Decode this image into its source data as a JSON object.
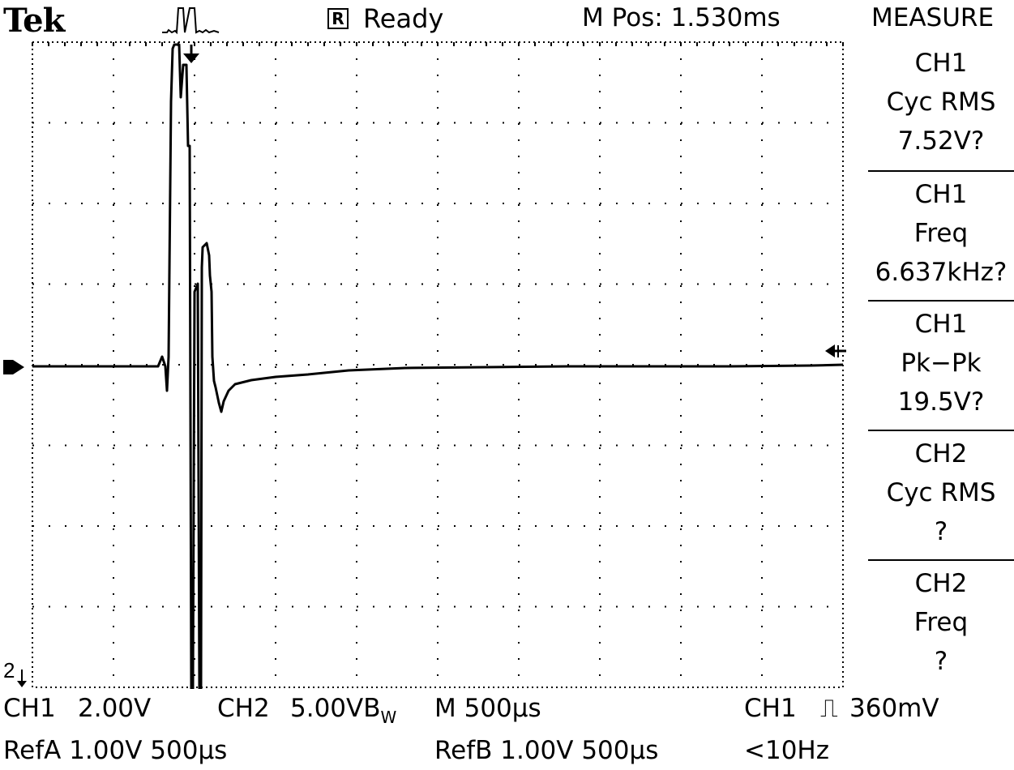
{
  "header": {
    "brand": "Tek",
    "run_indicator": "R",
    "status": "Ready",
    "m_pos": "M Pos: 1.530ms"
  },
  "measure": {
    "title": "MEASURE",
    "items": [
      {
        "channel": "CH1",
        "label": "Cyc RMS",
        "value": "7.52V?"
      },
      {
        "channel": "CH1",
        "label": "Freq",
        "value": "6.637kHz?"
      },
      {
        "channel": "CH1",
        "label": "Pk−Pk",
        "value": "19.5V?"
      },
      {
        "channel": "CH2",
        "label": "Cyc RMS",
        "value": "?"
      },
      {
        "channel": "CH2",
        "label": "Freq",
        "value": "?"
      }
    ]
  },
  "footer": {
    "ch1_label": "CH1",
    "ch1_scale": "2.00V",
    "ch2_label": "CH2",
    "ch2_scale": "5.00VB",
    "ch2_bw": "W",
    "timebase": "M 500µs",
    "trigger_src": "CH1",
    "trigger_symbol": "⎍",
    "trigger_level": "360mV",
    "refa": "RefA 1.00V 500µs",
    "refb": "RefB 1.00V 500µs",
    "freq": "<10Hz"
  },
  "markers": {
    "ch2_marker": "2"
  },
  "colors": {
    "background": "#ffffff",
    "trace": "#000000",
    "grid": "#000000"
  }
}
